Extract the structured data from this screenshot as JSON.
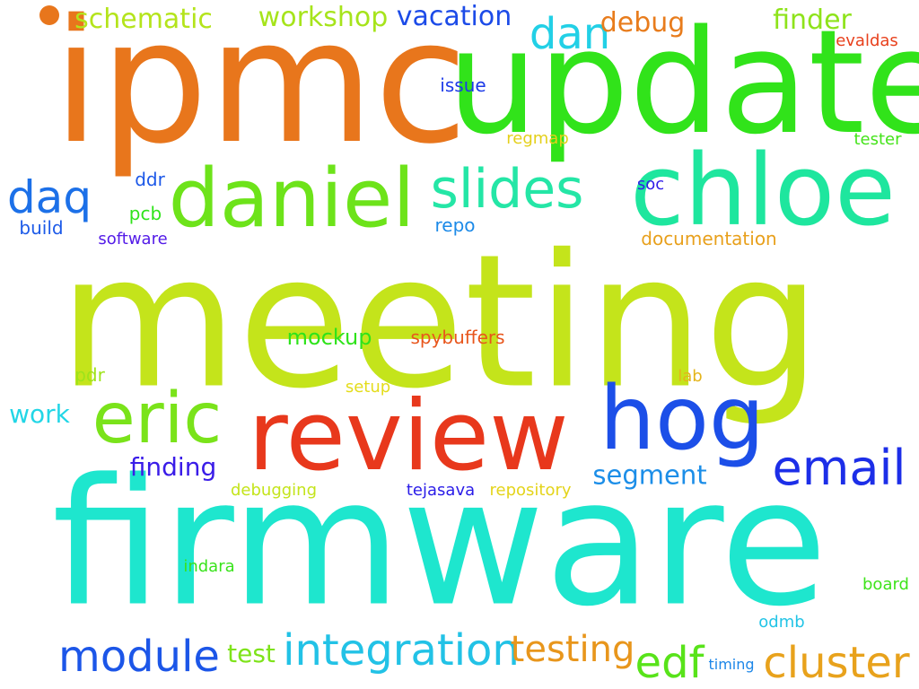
{
  "words": [
    {
      "text": "ipmc",
      "color": "#e8761c"
    },
    {
      "text": "update",
      "color": "#31e31a"
    },
    {
      "text": "meeting",
      "color": "#c4e41b"
    },
    {
      "text": "firmware",
      "color": "#1ee6ce"
    },
    {
      "text": "review",
      "color": "#e8381c"
    },
    {
      "text": "chloe",
      "color": "#1ee69e"
    },
    {
      "text": "daniel",
      "color": "#6de31a"
    },
    {
      "text": "hog",
      "color": "#1c4fe8"
    },
    {
      "text": "eric",
      "color": "#7ae31a"
    },
    {
      "text": "email",
      "color": "#1c2ee8"
    },
    {
      "text": "slides",
      "color": "#24e6a6"
    },
    {
      "text": "daq",
      "color": "#1c70e8"
    },
    {
      "text": "dan",
      "color": "#22d0e6"
    },
    {
      "text": "module",
      "color": "#1c56e8"
    },
    {
      "text": "integration",
      "color": "#22c2e6"
    },
    {
      "text": "testing",
      "color": "#e8961c"
    },
    {
      "text": "cluster",
      "color": "#e8a21c"
    },
    {
      "text": "edf",
      "color": "#58e31a"
    },
    {
      "text": "schematic",
      "color": "#b4e41b"
    },
    {
      "text": "workshop",
      "color": "#a6e41b"
    },
    {
      "text": "vacation",
      "color": "#1c4be8"
    },
    {
      "text": "debug",
      "color": "#e87c1c"
    },
    {
      "text": "finder",
      "color": "#8ee31a"
    },
    {
      "text": "segment",
      "color": "#1c8ee8"
    },
    {
      "text": "finding",
      "color": "#3a1ce8"
    },
    {
      "text": "work",
      "color": "#22d6e6"
    },
    {
      "text": "test",
      "color": "#7ee31a"
    },
    {
      "text": "mockup",
      "color": "#2ee31a"
    },
    {
      "text": "spybuffers",
      "color": "#e8561c"
    },
    {
      "text": "evaldas",
      "color": "#e8401c"
    },
    {
      "text": "issue",
      "color": "#1c3ae8"
    },
    {
      "text": "regmap",
      "color": "#e4d01b"
    },
    {
      "text": "tester",
      "color": "#44e31a"
    },
    {
      "text": "ddr",
      "color": "#1c58e8"
    },
    {
      "text": "soc",
      "color": "#301ce8"
    },
    {
      "text": "pcb",
      "color": "#30e31a"
    },
    {
      "text": "build",
      "color": "#1c5ae8"
    },
    {
      "text": "repo",
      "color": "#1c8ae8"
    },
    {
      "text": "software",
      "color": "#541ce8"
    },
    {
      "text": "documentation",
      "color": "#e8a01c"
    },
    {
      "text": "pdr",
      "color": "#9ee31a"
    },
    {
      "text": "setup",
      "color": "#e4dc1b"
    },
    {
      "text": "lab",
      "color": "#e4b41b"
    },
    {
      "text": "debugging",
      "color": "#c4e41b"
    },
    {
      "text": "tejasava",
      "color": "#2a1ce8"
    },
    {
      "text": "repository",
      "color": "#e4d41b"
    },
    {
      "text": "indara",
      "color": "#38e31a"
    },
    {
      "text": "board",
      "color": "#3ee31a"
    },
    {
      "text": "odmb",
      "color": "#22c4e6"
    },
    {
      "text": "timing",
      "color": "#1c86e8"
    }
  ],
  "dot_color": "#e8761c"
}
